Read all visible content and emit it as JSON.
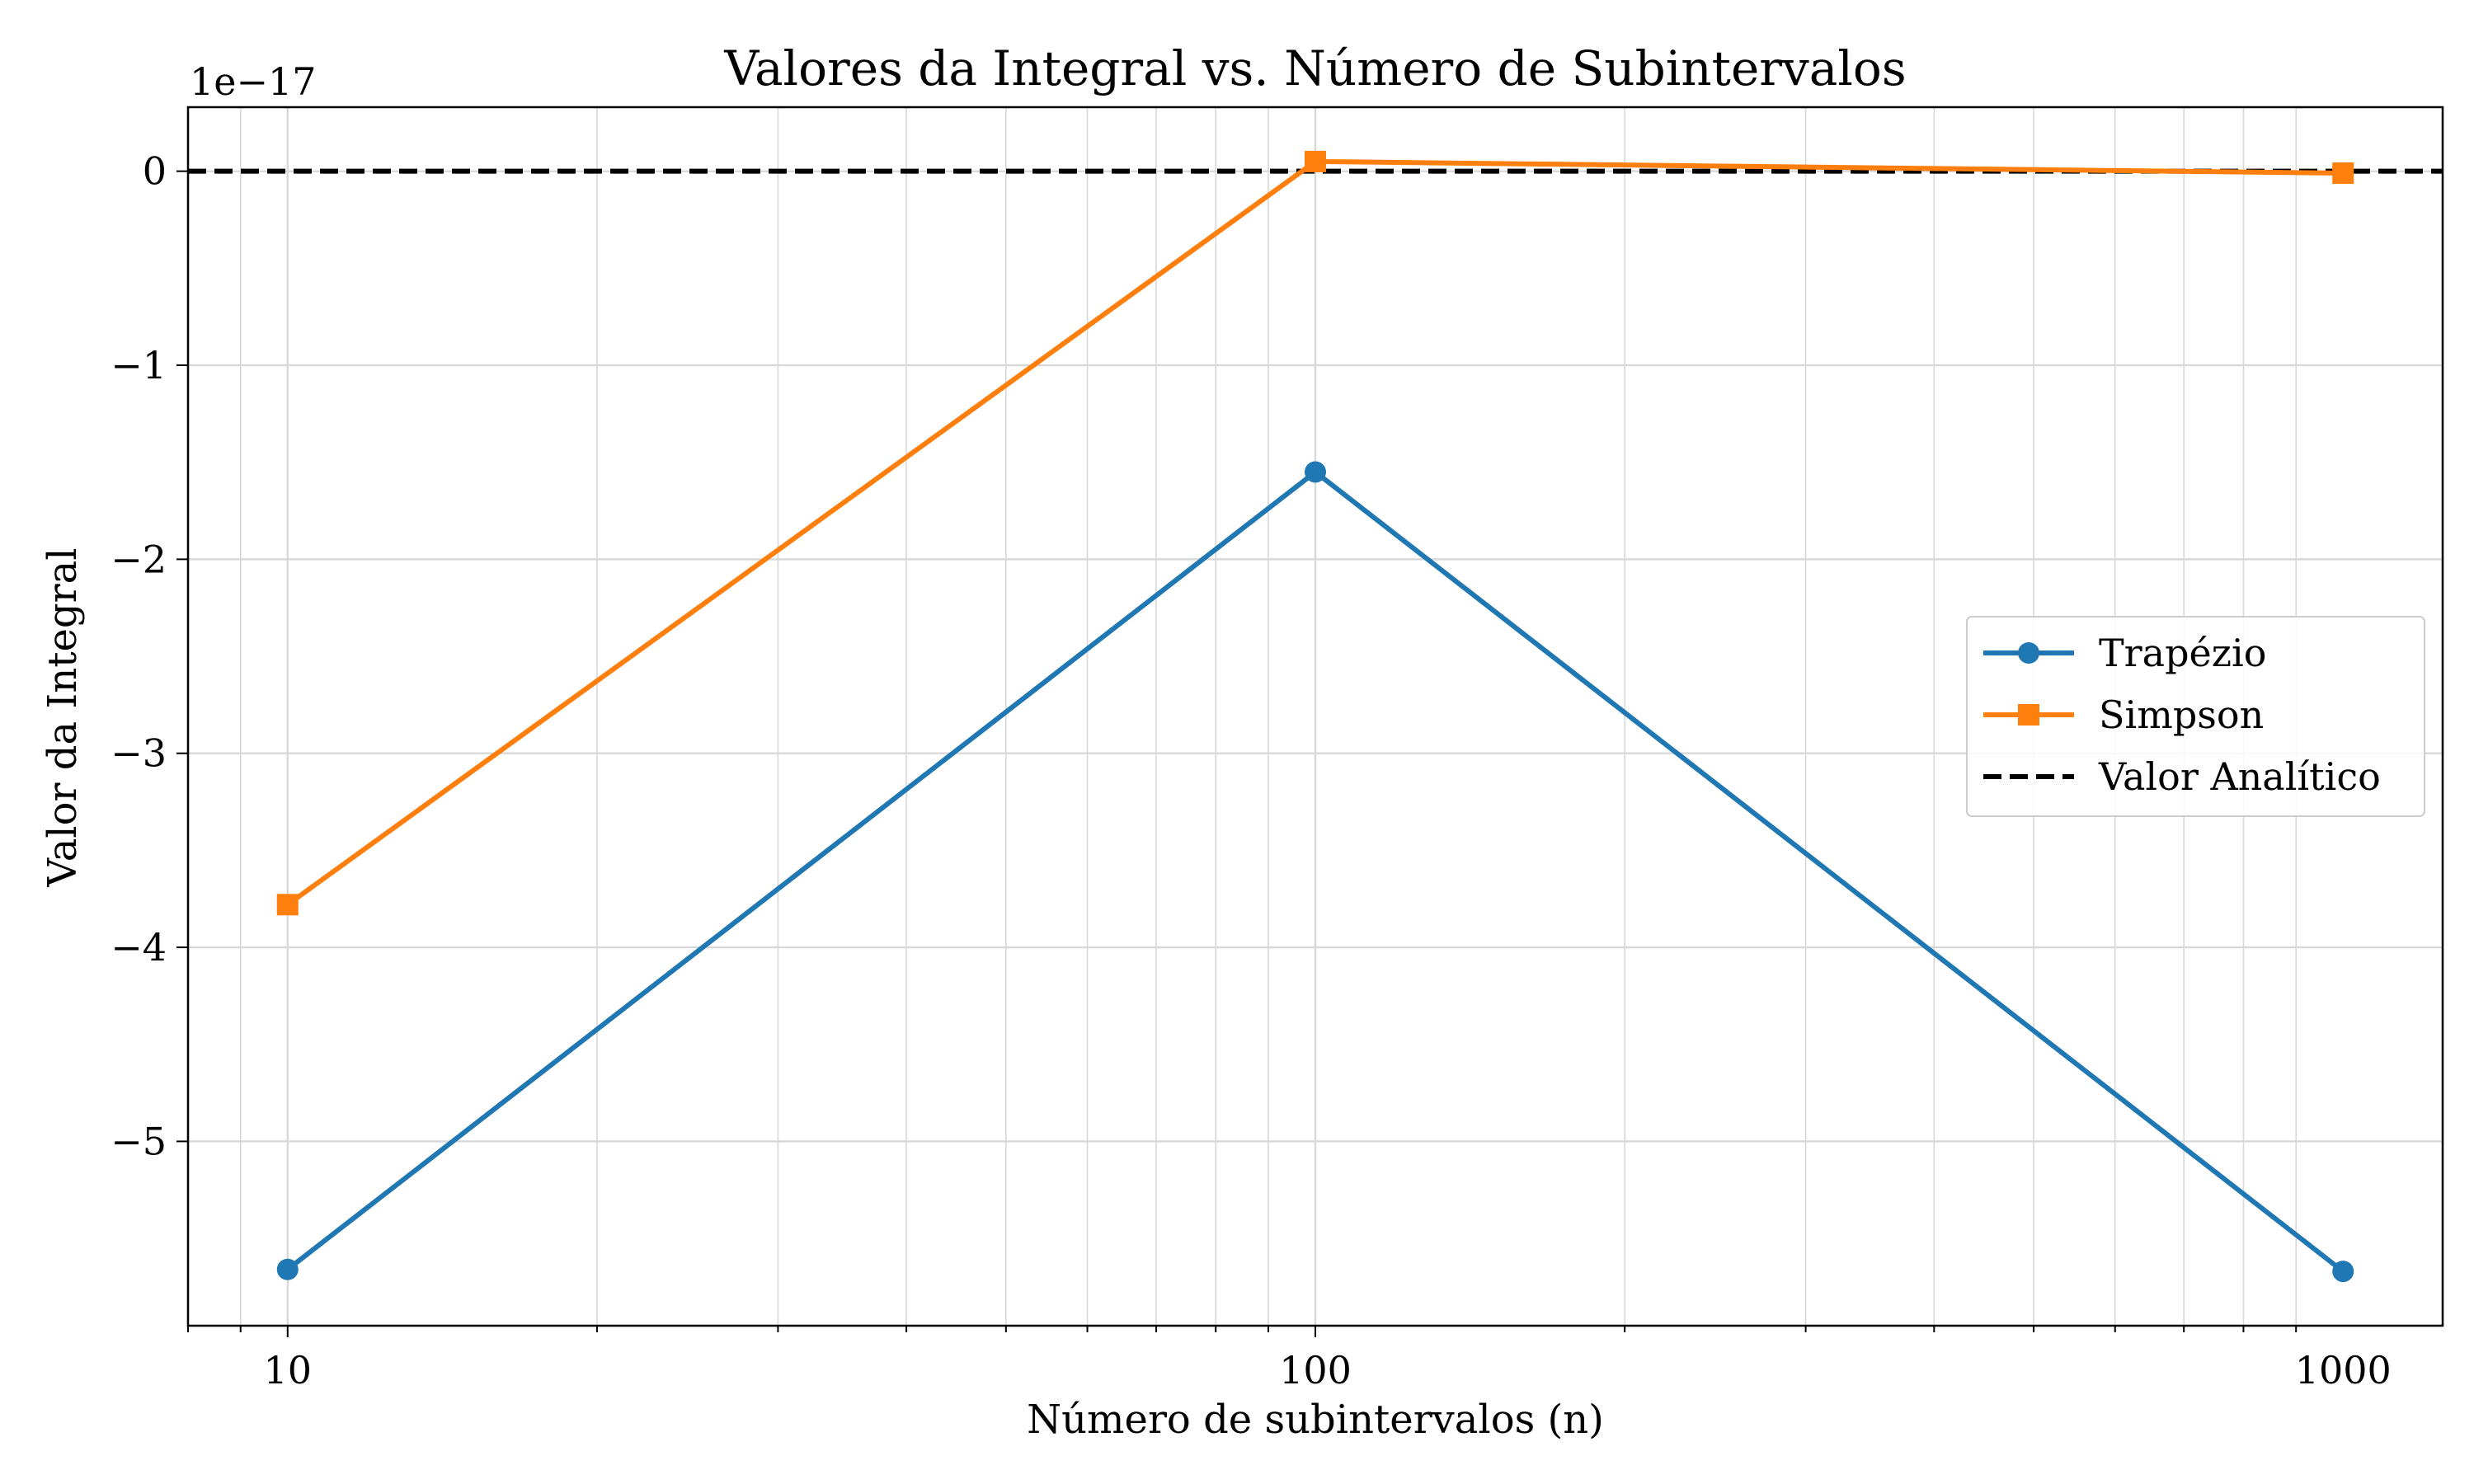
{
  "chart_data": {
    "type": "line",
    "title": "Valores da Integral vs. Número de Subintervalos",
    "xlabel": "Número de subintervalos (n)",
    "ylabel": "Valor da Integral",
    "x_scale": "log",
    "xlim": [
      8,
      1250
    ],
    "ylim": [
      -5.95,
      0.33
    ],
    "y_multiplier_label": "1e−17",
    "x_ticks": [
      10,
      100,
      1000
    ],
    "x_tick_labels": [
      "10",
      "100",
      "1000"
    ],
    "y_ticks": [
      0,
      -1,
      -2,
      -3,
      -4,
      -5
    ],
    "y_tick_labels": [
      "0",
      "−1",
      "−2",
      "−3",
      "−4",
      "−5"
    ],
    "grid": true,
    "legend_position": "center-right",
    "series": [
      {
        "name": "Trapézio",
        "color": "#1f77b4",
        "marker": "circle",
        "style": "solid",
        "x": [
          10,
          100,
          1000
        ],
        "values": [
          -5.66,
          -1.55,
          -5.67
        ]
      },
      {
        "name": "Simpson",
        "color": "#ff7f0e",
        "marker": "square",
        "style": "solid",
        "x": [
          10,
          100,
          1000
        ],
        "values": [
          -3.78,
          0.05,
          -0.01
        ]
      },
      {
        "name": "Valor Analítico",
        "color": "#000000",
        "marker": "none",
        "style": "dashed",
        "x": [
          8,
          1250
        ],
        "values": [
          0,
          0
        ]
      }
    ]
  }
}
